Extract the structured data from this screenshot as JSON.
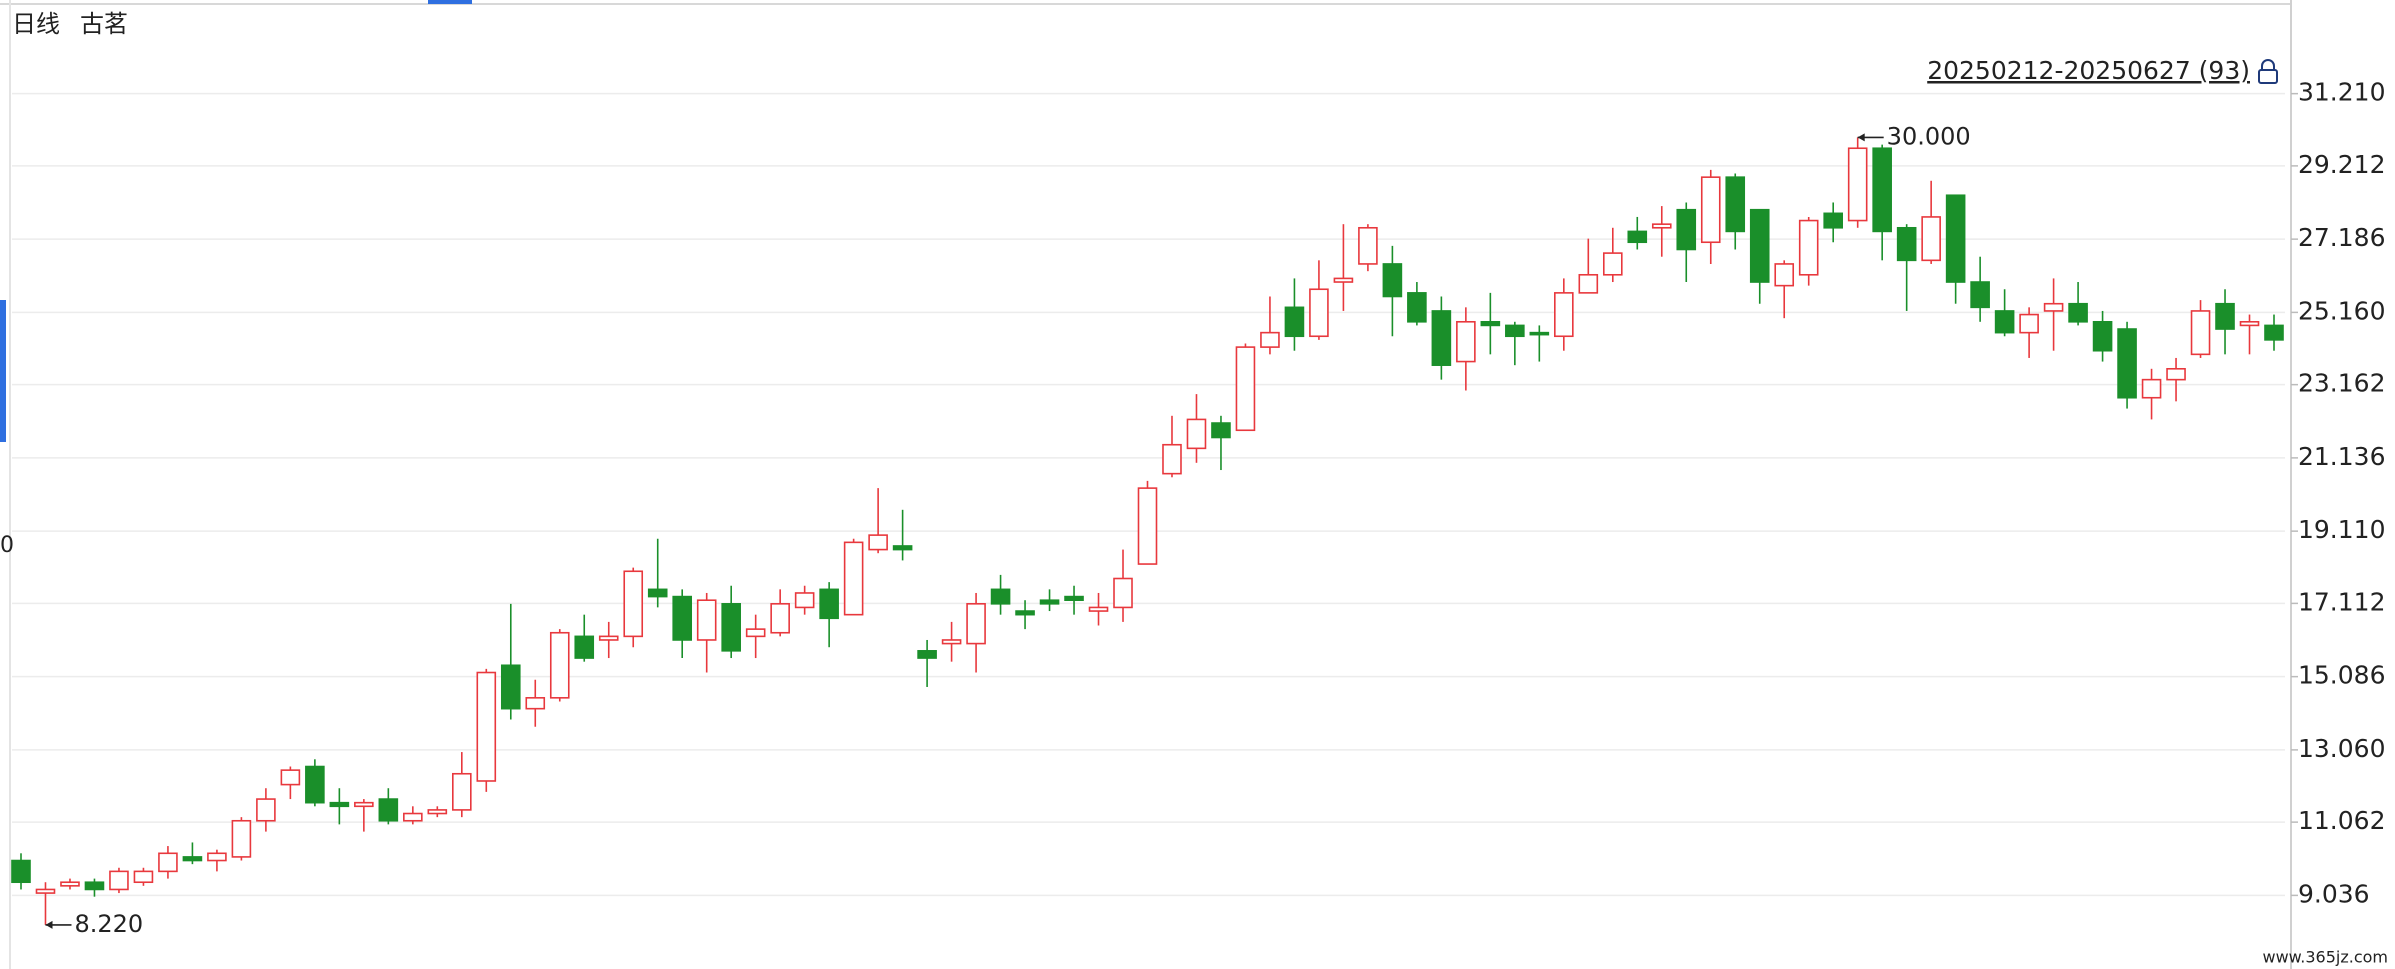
{
  "chart_data": {
    "type": "candlestick",
    "period": "日线",
    "stock_name": "古茗",
    "range_label": "20250212-20250627 (93)",
    "left_fragment": "0",
    "watermark": "www.365jz.com",
    "up_color": "#e8383d",
    "down_color": "#1a8f2a",
    "grid": true,
    "ylim": [
      7.0,
      33.8
    ],
    "yticks": [
      {
        "value": 31.21,
        "label": "31.210"
      },
      29.212,
      27.186,
      {
        "value": 25.16,
        "label": "25.160"
      },
      23.162,
      21.136,
      {
        "value": 19.11,
        "label": "19.110"
      },
      17.112,
      15.086,
      {
        "value": 13.06,
        "label": "13.060"
      },
      11.062,
      9.036
    ],
    "open": [
      10.0,
      9.1,
      9.3,
      9.4,
      9.2,
      9.4,
      9.7,
      10.1,
      10.0,
      10.1,
      11.1,
      12.1,
      12.6,
      11.6,
      11.5,
      11.7,
      11.1,
      11.3,
      11.4,
      12.2,
      15.4,
      14.2,
      14.5,
      16.2,
      16.1,
      16.2,
      17.5,
      17.3,
      16.1,
      17.1,
      16.2,
      16.3,
      17.0,
      17.5,
      16.8,
      18.6,
      18.7,
      15.8,
      16.0,
      16.0,
      17.5,
      16.9,
      17.2,
      17.3,
      16.9,
      17.0,
      18.2,
      20.7,
      21.4,
      22.1,
      21.9,
      24.2,
      25.3,
      24.5,
      26.0,
      26.5,
      26.5,
      25.7,
      25.2,
      23.8,
      24.9,
      24.8,
      24.6,
      24.5,
      25.7,
      26.2,
      27.4,
      27.5,
      28.0,
      27.1,
      28.9,
      28.0,
      25.9,
      26.2,
      27.9,
      27.7,
      29.7,
      27.5,
      26.6,
      28.4,
      26.0,
      25.2,
      24.6,
      25.2,
      25.4,
      24.9,
      24.7,
      22.8,
      23.3,
      24.0,
      25.4,
      24.8,
      24.8
    ],
    "high": [
      10.2,
      9.4,
      9.5,
      9.5,
      9.8,
      9.8,
      10.4,
      10.5,
      10.3,
      11.2,
      12.0,
      12.6,
      12.8,
      12.0,
      11.7,
      12.0,
      11.5,
      11.5,
      13.0,
      15.3,
      17.1,
      15.0,
      16.4,
      16.8,
      16.6,
      18.1,
      18.9,
      17.5,
      17.4,
      17.6,
      16.8,
      17.5,
      17.6,
      17.7,
      18.9,
      20.3,
      19.7,
      16.1,
      16.6,
      17.4,
      17.9,
      17.2,
      17.5,
      17.6,
      17.4,
      18.6,
      20.5,
      22.3,
      22.9,
      22.3,
      24.3,
      25.6,
      26.1,
      26.6,
      27.6,
      27.6,
      27.0,
      26.0,
      25.6,
      25.3,
      25.7,
      24.9,
      24.8,
      26.1,
      27.2,
      27.5,
      27.8,
      28.1,
      28.2,
      29.1,
      29.0,
      28.0,
      26.6,
      27.8,
      28.2,
      30.0,
      29.8,
      27.6,
      28.8,
      28.4,
      26.7,
      25.8,
      25.3,
      26.1,
      26.0,
      25.2,
      24.9,
      23.6,
      23.9,
      25.5,
      25.8,
      25.1,
      25.1
    ],
    "low": [
      9.2,
      8.22,
      9.2,
      9.0,
      9.1,
      9.3,
      9.5,
      9.9,
      9.7,
      10.0,
      10.8,
      11.7,
      11.5,
      11.0,
      10.8,
      11.0,
      11.0,
      11.2,
      11.2,
      11.9,
      13.9,
      13.7,
      14.4,
      15.5,
      15.6,
      15.9,
      17.0,
      15.6,
      15.2,
      15.6,
      15.6,
      16.2,
      16.8,
      15.9,
      16.8,
      18.5,
      18.3,
      14.8,
      15.5,
      15.2,
      16.8,
      16.4,
      16.9,
      16.8,
      16.5,
      16.6,
      18.2,
      20.6,
      21.0,
      20.8,
      21.9,
      24.0,
      24.1,
      24.4,
      25.2,
      26.3,
      24.5,
      24.8,
      23.3,
      23.0,
      24.0,
      23.7,
      23.8,
      24.1,
      25.7,
      26.0,
      26.9,
      26.7,
      26.0,
      26.5,
      26.9,
      25.4,
      25.0,
      25.9,
      27.1,
      27.5,
      26.6,
      25.2,
      26.5,
      25.4,
      24.9,
      24.5,
      23.9,
      24.1,
      24.8,
      23.8,
      22.5,
      22.2,
      22.7,
      23.9,
      24.0,
      24.0,
      24.1
    ],
    "close": [
      9.4,
      9.2,
      9.4,
      9.2,
      9.7,
      9.7,
      10.2,
      10.0,
      10.2,
      11.1,
      11.7,
      12.5,
      11.6,
      11.5,
      11.6,
      11.1,
      11.3,
      11.4,
      12.4,
      15.2,
      14.2,
      14.5,
      16.3,
      15.6,
      16.2,
      18.0,
      17.3,
      16.1,
      17.2,
      15.8,
      16.4,
      17.1,
      17.4,
      16.7,
      18.8,
      19.0,
      18.6,
      15.6,
      16.1,
      17.1,
      17.1,
      16.8,
      17.1,
      17.2,
      17.0,
      17.8,
      20.3,
      21.5,
      22.2,
      21.7,
      24.2,
      24.6,
      24.5,
      25.8,
      26.1,
      27.5,
      25.6,
      24.9,
      23.7,
      24.9,
      24.8,
      24.5,
      24.55,
      25.7,
      26.2,
      26.8,
      27.1,
      27.6,
      26.9,
      28.9,
      27.4,
      26.0,
      26.5,
      27.7,
      27.5,
      29.7,
      27.4,
      26.6,
      27.8,
      26.0,
      25.3,
      24.6,
      25.1,
      25.4,
      24.9,
      24.1,
      22.8,
      23.3,
      23.6,
      25.2,
      24.7,
      24.9,
      24.4
    ],
    "max_label": {
      "value": 30.0,
      "label": "30.000"
    },
    "min_label": {
      "value": 8.22,
      "label": "8.220"
    }
  }
}
